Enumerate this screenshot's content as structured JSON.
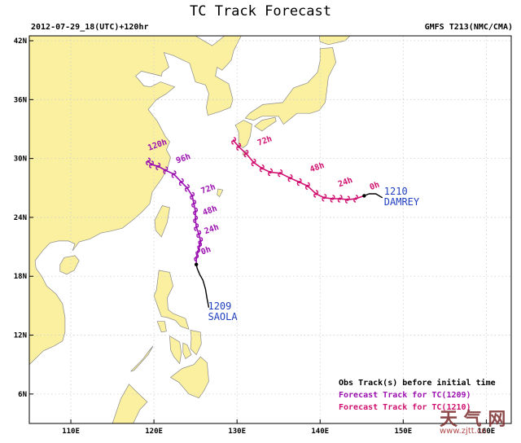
{
  "header": {
    "title": "TC Track Forecast",
    "left": "2012-07-29_18(UTC)+120hr",
    "right": "GMFS T213(NMC/CMA)"
  },
  "axes": {
    "lat_ticks": [
      "42N",
      "36N",
      "30N",
      "24N",
      "18N",
      "12N",
      "6N"
    ],
    "lon_ticks": [
      "110E",
      "120E",
      "130E",
      "140E",
      "150E",
      "160E"
    ],
    "lon_range": [
      105,
      163
    ],
    "lat_range": [
      3,
      42.5
    ]
  },
  "colors": {
    "ocean": "#ffffff",
    "land": "#faf0a0",
    "border": "#9a9a9a",
    "grid": "#d0d0d0",
    "obs_track": "#000000",
    "track_1209": "#9b10b0",
    "track_1210": "#d01070",
    "storm_label": "#2040c0"
  },
  "storms": [
    {
      "id": "1209",
      "name": "SAOLA",
      "obs_track": [
        [
          126.6,
          14.8
        ],
        [
          126.4,
          15.7
        ],
        [
          126.2,
          16.7
        ],
        [
          125.9,
          17.6
        ],
        [
          125.5,
          18.2
        ],
        [
          125.2,
          18.8
        ],
        [
          125.1,
          19.2
        ]
      ],
      "forecast": [
        [
          125.1,
          19.2
        ],
        [
          125.1,
          19.9
        ],
        [
          125.3,
          20.5
        ],
        [
          125.5,
          21.1
        ],
        [
          125.6,
          21.6
        ],
        [
          125.4,
          22.3
        ],
        [
          125.1,
          23.0
        ],
        [
          125.0,
          23.8
        ],
        [
          125.0,
          24.6
        ],
        [
          124.8,
          25.4
        ],
        [
          124.6,
          26.2
        ],
        [
          124.0,
          27.0
        ],
        [
          123.3,
          27.6
        ],
        [
          122.4,
          28.4
        ],
        [
          121.4,
          28.8
        ],
        [
          120.5,
          29.2
        ],
        [
          119.7,
          29.4
        ],
        [
          119.3,
          29.7
        ]
      ],
      "hour_labels": [
        {
          "text": "0h",
          "lon": 125.8,
          "lat": 20.2
        },
        {
          "text": "24h",
          "lon": 126.2,
          "lat": 22.3
        },
        {
          "text": "48h",
          "lon": 126.0,
          "lat": 24.2
        },
        {
          "text": "72h",
          "lon": 125.8,
          "lat": 26.4
        },
        {
          "text": "96h",
          "lon": 122.8,
          "lat": 29.5
        },
        {
          "text": "120h",
          "lon": 119.4,
          "lat": 30.8
        }
      ]
    },
    {
      "id": "1210",
      "name": "DAMREY",
      "obs_track": [
        [
          147.5,
          26.0
        ],
        [
          146.7,
          26.4
        ],
        [
          145.9,
          26.4
        ],
        [
          145.3,
          26.2
        ]
      ],
      "forecast": [
        [
          145.3,
          26.2
        ],
        [
          144.3,
          25.9
        ],
        [
          143.3,
          25.8
        ],
        [
          142.4,
          25.9
        ],
        [
          141.5,
          25.9
        ],
        [
          140.5,
          26.0
        ],
        [
          139.5,
          26.4
        ],
        [
          138.5,
          27.2
        ],
        [
          137.5,
          27.6
        ],
        [
          136.4,
          28.0
        ],
        [
          135.2,
          28.5
        ],
        [
          134.0,
          28.6
        ],
        [
          133.0,
          29.0
        ],
        [
          132.0,
          29.6
        ],
        [
          131.1,
          30.5
        ],
        [
          130.2,
          31.2
        ],
        [
          129.6,
          31.8
        ]
      ],
      "hour_labels": [
        {
          "text": "0h",
          "lon": 146.1,
          "lat": 26.8
        },
        {
          "text": "24h",
          "lon": 142.3,
          "lat": 27.1
        },
        {
          "text": "48h",
          "lon": 138.9,
          "lat": 28.6
        },
        {
          "text": "72h",
          "lon": 132.6,
          "lat": 31.3
        }
      ]
    }
  ],
  "legend": {
    "obs": "Obs Track(s) before initial time",
    "fc1209": "Forecast Track for TC(1209)",
    "fc1210": "Forecast Track for TC(1210)"
  },
  "watermark": {
    "logo": "天 气 网",
    "url": "www.zjtt.cn"
  }
}
